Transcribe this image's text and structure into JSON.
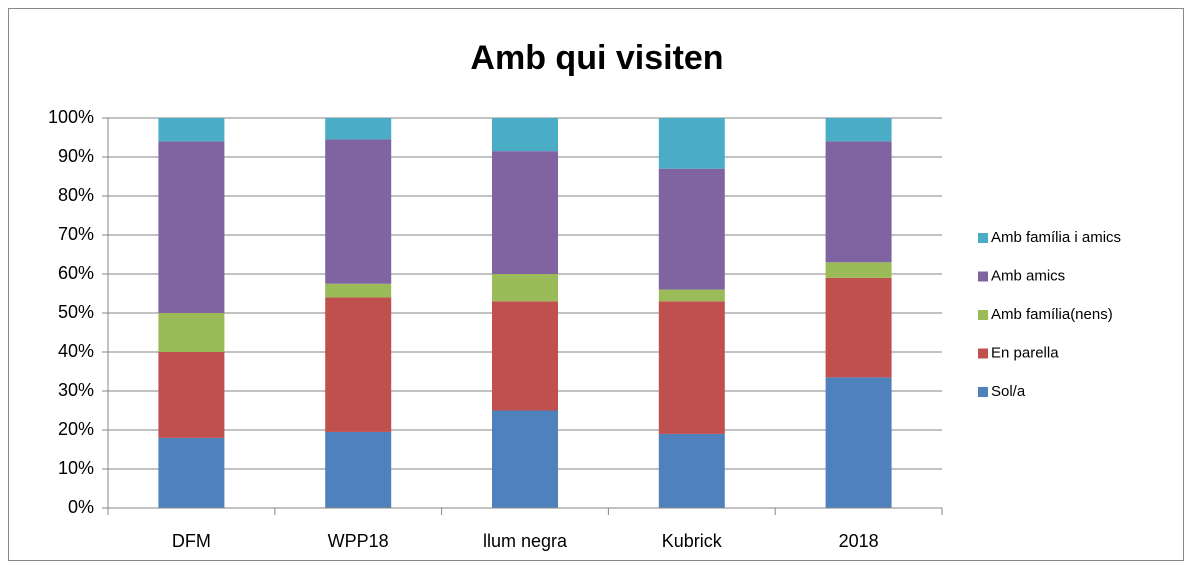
{
  "chart_data": {
    "type": "stacked-bar",
    "title": "Amb qui visiten",
    "categories": [
      "DFM",
      "WPP18",
      "llum negra",
      "Kubrick",
      "2018"
    ],
    "series": [
      {
        "name": "Sol/a",
        "color": "#4f81bd",
        "values": [
          18,
          19.5,
          25,
          19,
          33.5
        ]
      },
      {
        "name": "En parella",
        "color": "#c0504d",
        "values": [
          22,
          34.5,
          28,
          34,
          25.5
        ]
      },
      {
        "name": "Amb família(nens)",
        "color": "#9bbb59",
        "values": [
          10,
          3.5,
          7,
          3,
          4
        ]
      },
      {
        "name": "Amb amics",
        "color": "#8064a2",
        "values": [
          44,
          37,
          31.5,
          31,
          31
        ]
      },
      {
        "name": "Amb família i amics",
        "color": "#4bacc6",
        "values": [
          6,
          5.5,
          8.5,
          13,
          6
        ]
      }
    ],
    "ylim": [
      0,
      100
    ],
    "yticks": [
      {
        "value": 0,
        "label": "0%"
      },
      {
        "value": 10,
        "label": "10%"
      },
      {
        "value": 20,
        "label": "20%"
      },
      {
        "value": 30,
        "label": "30%"
      },
      {
        "value": 40,
        "label": "40%"
      },
      {
        "value": 50,
        "label": "50%"
      },
      {
        "value": 60,
        "label": "60%"
      },
      {
        "value": 70,
        "label": "70%"
      },
      {
        "value": 80,
        "label": "80%"
      },
      {
        "value": 90,
        "label": "90%"
      },
      {
        "value": 100,
        "label": "100%"
      }
    ],
    "grid": true,
    "legend": "right"
  }
}
